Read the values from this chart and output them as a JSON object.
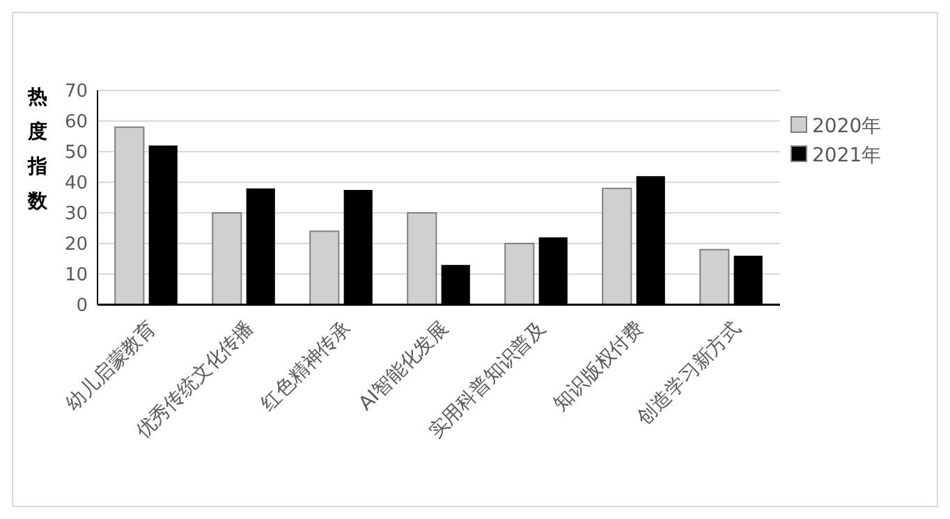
{
  "chart_data": {
    "type": "bar",
    "ylabel": "热度指数",
    "categories": [
      "幼儿启蒙教育",
      "优秀传统文化传播",
      "红色精神传承",
      "AI智能化发展",
      "实用科普知识普及",
      "知识版权付费",
      "创造学习新方式"
    ],
    "series": [
      {
        "name": "2020年",
        "color": "#d0d0d0",
        "values": [
          58,
          30,
          24,
          30,
          20,
          38,
          18
        ]
      },
      {
        "name": "2021年",
        "color": "#000000",
        "values": [
          52,
          38,
          37.5,
          13,
          22,
          42,
          16
        ]
      }
    ],
    "ylim": [
      0,
      70
    ],
    "yticks": [
      0,
      10,
      20,
      30,
      40,
      50,
      60,
      70
    ],
    "grid": "y",
    "legend": "right"
  }
}
